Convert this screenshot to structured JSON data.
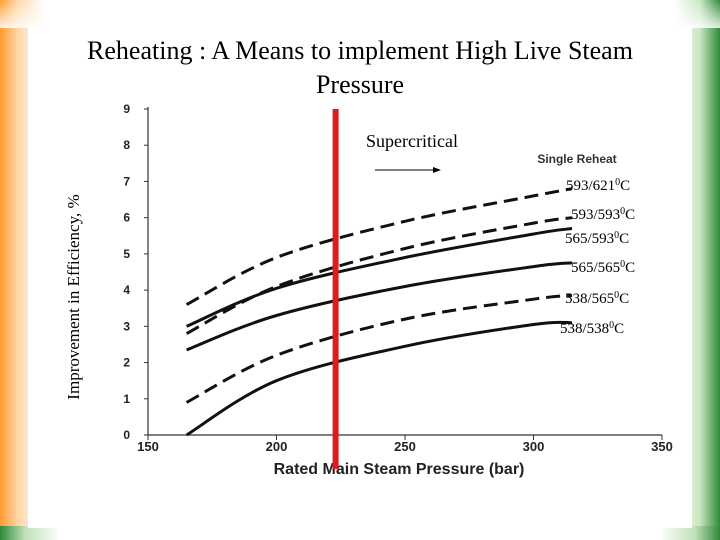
{
  "page": {
    "title": "Reheating : A Means to implement High Live Steam Pressure"
  },
  "colors": {
    "marker": "#e01b1b",
    "lines": "#000000",
    "left_band": "#ff9a2e",
    "right_band": "#2f8a3a"
  },
  "chart_data": {
    "type": "line",
    "title": "Single Reheat",
    "xlabel": "Rated Main Steam Pressure (bar)",
    "ylabel": "Improvement in Efficiency, %",
    "xlim": [
      150,
      350
    ],
    "ylim": [
      0,
      9
    ],
    "xticks": [
      "150",
      "200",
      "250",
      "300",
      "350"
    ],
    "yticks": [
      "0",
      "1",
      "2",
      "3",
      "4",
      "5",
      "6",
      "7",
      "8",
      "9"
    ],
    "series": [
      {
        "name": "593/6210C",
        "label_main": "593/621",
        "label_sup": "0",
        "label_unit": "C",
        "style": "dashed",
        "x": [
          165,
          200,
          250,
          300,
          315
        ],
        "y": [
          3.6,
          4.9,
          5.9,
          6.6,
          6.8
        ]
      },
      {
        "name": "593/5930C",
        "label_main": "593/593",
        "label_sup": "0",
        "label_unit": "C",
        "style": "dashed",
        "x": [
          165,
          200,
          250,
          300,
          315
        ],
        "y": [
          2.8,
          4.1,
          5.15,
          5.85,
          6.0
        ]
      },
      {
        "name": "565/5930C",
        "label_main": "565/593",
        "label_sup": "0",
        "label_unit": "C",
        "style": "solid",
        "x": [
          165,
          200,
          250,
          300,
          315
        ],
        "y": [
          3.0,
          4.05,
          4.9,
          5.55,
          5.7
        ]
      },
      {
        "name": "565/5650C",
        "label_main": "565/565",
        "label_sup": "0",
        "label_unit": "C",
        "style": "solid",
        "x": [
          165,
          200,
          250,
          300,
          315
        ],
        "y": [
          2.35,
          3.3,
          4.1,
          4.65,
          4.75
        ]
      },
      {
        "name": "538/5650C",
        "label_main": "538/565",
        "label_sup": "0",
        "label_unit": "C",
        "style": "dashed",
        "x": [
          165,
          200,
          250,
          300,
          315
        ],
        "y": [
          0.9,
          2.2,
          3.2,
          3.75,
          3.85
        ]
      },
      {
        "name": "538/5380C",
        "label_main": "538/538",
        "label_sup": "0",
        "label_unit": "C",
        "style": "solid",
        "x": [
          165,
          200,
          250,
          300,
          315
        ],
        "y": [
          0.0,
          1.5,
          2.45,
          3.05,
          3.1
        ]
      }
    ],
    "annotations": [
      {
        "text": "Supercritical",
        "type": "arrow-right"
      }
    ],
    "vline_x": 223
  }
}
